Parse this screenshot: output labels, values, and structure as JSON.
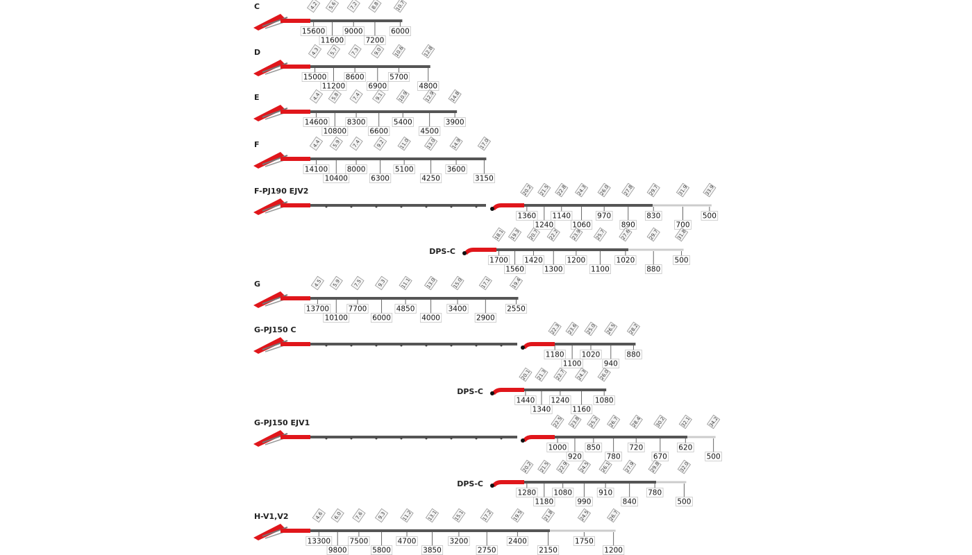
{
  "rows": [
    {
      "label": "C",
      "reach": [
        "4.2",
        "5.6",
        "7.2",
        "8.8",
        "10.7"
      ],
      "load": [
        15600,
        11600,
        9000,
        7200,
        6000
      ]
    },
    {
      "label": "D",
      "reach": [
        "4.3",
        "5.7",
        "7.3",
        "9.0",
        "10.6",
        "12.8"
      ],
      "load": [
        15000,
        11200,
        8600,
        6900,
        5700,
        4800
      ]
    },
    {
      "label": "E",
      "reach": [
        "4.4",
        "5.8",
        "7.4",
        "9.1",
        "10.9",
        "12.9",
        "14.8"
      ],
      "load": [
        14600,
        10800,
        8300,
        6600,
        5400,
        4500,
        3900
      ]
    },
    {
      "label": "F",
      "reach": [
        "4.4",
        "5.9",
        "7.4",
        "9.2",
        "11.0",
        "13.0",
        "14.9",
        "17.0"
      ],
      "load": [
        14100,
        10400,
        8000,
        6300,
        5100,
        4250,
        3600,
        3150
      ]
    },
    {
      "label": "F-PJ190 EJV2",
      "reach": [
        "20.2",
        "21.5",
        "22.8",
        "24.3",
        "26.0",
        "27.8",
        "29.7",
        "31.9",
        "33.9"
      ],
      "load": [
        1360,
        1240,
        1140,
        1060,
        970,
        890,
        830,
        700,
        500
      ]
    },
    {
      "label": "DPS-C",
      "reach": [
        "18.1",
        "19.3",
        "20.7",
        "22.2",
        "23.9",
        "25.7",
        "27.6",
        "29.7",
        "31.8"
      ],
      "load": [
        1700,
        1560,
        1420,
        1300,
        1200,
        1100,
        1020,
        880,
        500
      ]
    },
    {
      "label": "G",
      "reach": [
        "4.5",
        "5.9",
        "7.5",
        "9.3",
        "11.1",
        "13.0",
        "15.0",
        "17.1",
        "19.4"
      ],
      "load": [
        13700,
        10100,
        7700,
        6000,
        4850,
        4000,
        3400,
        2900,
        2550
      ]
    },
    {
      "label": "G-PJ150 C",
      "reach": [
        "22.3",
        "23.6",
        "25.0",
        "26.5",
        "28.2"
      ],
      "load": [
        1180,
        1100,
        1020,
        940,
        880
      ]
    },
    {
      "label": "DPS-C",
      "reach": [
        "20.1",
        "21.3",
        "22.7",
        "24.3",
        "26.0"
      ],
      "load": [
        1440,
        1340,
        1240,
        1160,
        1080
      ]
    },
    {
      "label": "G-PJ150 EJV1",
      "reach": [
        "22.5",
        "23.8",
        "25.2",
        "26.7",
        "28.4",
        "30.2",
        "32.1",
        "34.2"
      ],
      "load": [
        1000,
        920,
        850,
        780,
        720,
        670,
        620,
        500
      ]
    },
    {
      "label": "DPS-C",
      "reach": [
        "20.2",
        "21.5",
        "22.9",
        "24.5",
        "26.1",
        "27.9",
        "29.8",
        "32.0"
      ],
      "load": [
        1280,
        1180,
        1080,
        990,
        910,
        840,
        780,
        500
      ]
    },
    {
      "label": "H-V1,V2",
      "reach": [
        "4.6",
        "6.0",
        "7.6",
        "9.3",
        "11.2",
        "13.1",
        "15.1",
        "17.2",
        "19.5",
        "21.8",
        "24.5",
        "26.7"
      ],
      "load": [
        13300,
        9800,
        7500,
        5800,
        4700,
        3850,
        3200,
        2750,
        2400,
        2150,
        1750,
        1200
      ]
    }
  ]
}
